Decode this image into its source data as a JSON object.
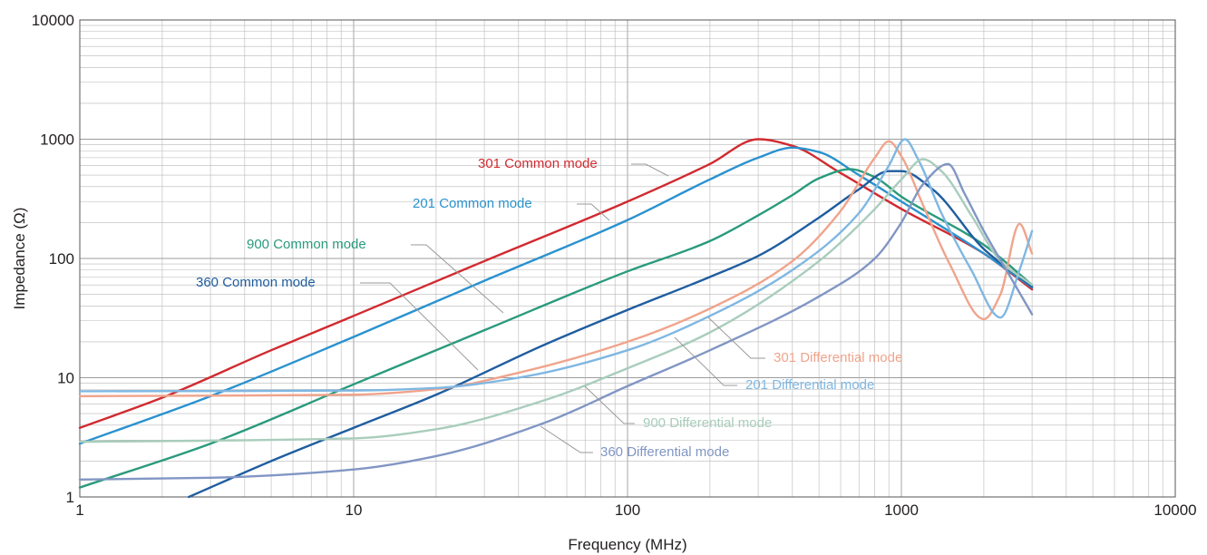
{
  "chart_data": {
    "type": "line",
    "title": "",
    "xlabel": "Frequency (MHz)",
    "ylabel": "Impedance (Ω)",
    "xscale": "log",
    "yscale": "log",
    "xlim": [
      1,
      10000
    ],
    "ylim": [
      1,
      10000
    ],
    "grid": true,
    "legend": "inline labels with leader lines",
    "x_ticks": [
      "1",
      "10",
      "100",
      "1000",
      "10000"
    ],
    "y_ticks": [
      "1",
      "10",
      "100",
      "1000",
      "10000"
    ],
    "series": [
      {
        "name": "301 Common mode",
        "color": "#d12a2f",
        "points": [
          [
            1,
            3.8
          ],
          [
            2,
            6.8
          ],
          [
            5,
            17
          ],
          [
            10,
            33
          ],
          [
            30,
            95
          ],
          [
            100,
            300
          ],
          [
            200,
            620
          ],
          [
            300,
            1000
          ],
          [
            400,
            880
          ],
          [
            600,
            520
          ],
          [
            1000,
            260
          ],
          [
            2000,
            110
          ],
          [
            3000,
            55
          ]
        ]
      },
      {
        "name": "201 Common mode",
        "color": "#2a92cf",
        "points": [
          [
            1,
            2.8
          ],
          [
            3,
            7
          ],
          [
            10,
            22
          ],
          [
            30,
            65
          ],
          [
            100,
            210
          ],
          [
            200,
            460
          ],
          [
            300,
            700
          ],
          [
            400,
            850
          ],
          [
            500,
            780
          ],
          [
            700,
            500
          ],
          [
            1000,
            300
          ],
          [
            2000,
            110
          ],
          [
            3000,
            57
          ]
        ]
      },
      {
        "name": "900 Common mode",
        "color": "#2a9a7c",
        "points": [
          [
            1,
            1.2
          ],
          [
            3,
            2.8
          ],
          [
            10,
            8.8
          ],
          [
            30,
            25
          ],
          [
            100,
            78
          ],
          [
            200,
            140
          ],
          [
            300,
            230
          ],
          [
            400,
            340
          ],
          [
            500,
            470
          ],
          [
            650,
            560
          ],
          [
            800,
            480
          ],
          [
            1000,
            330
          ],
          [
            2000,
            130
          ],
          [
            3000,
            60
          ]
        ]
      },
      {
        "name": "360 Common mode",
        "color": "#1f5d9f",
        "points": [
          [
            2.5,
            1
          ],
          [
            5,
            2
          ],
          [
            10,
            3.8
          ],
          [
            20,
            7.2
          ],
          [
            50,
            19
          ],
          [
            100,
            37
          ],
          [
            200,
            70
          ],
          [
            300,
            105
          ],
          [
            500,
            220
          ],
          [
            700,
            380
          ],
          [
            900,
            540
          ],
          [
            1000,
            540
          ],
          [
            1300,
            380
          ],
          [
            2000,
            120
          ],
          [
            3000,
            58
          ]
        ]
      },
      {
        "name": "301 Differential mode",
        "color": "#f0a48c",
        "points": [
          [
            1,
            7
          ],
          [
            10,
            7.2
          ],
          [
            20,
            8
          ],
          [
            40,
            11
          ],
          [
            100,
            20
          ],
          [
            200,
            38
          ],
          [
            400,
            95
          ],
          [
            600,
            250
          ],
          [
            800,
            700
          ],
          [
            900,
            960
          ],
          [
            1000,
            720
          ],
          [
            1200,
            280
          ],
          [
            1500,
            90
          ],
          [
            2000,
            31
          ],
          [
            2300,
            50
          ],
          [
            2700,
            195
          ],
          [
            3000,
            110
          ]
        ]
      },
      {
        "name": "201 Differential mode",
        "color": "#7fb7e2",
        "points": [
          [
            1,
            7.7
          ],
          [
            10,
            7.8
          ],
          [
            20,
            8.2
          ],
          [
            40,
            10
          ],
          [
            100,
            17
          ],
          [
            200,
            33
          ],
          [
            400,
            80
          ],
          [
            700,
            240
          ],
          [
            900,
            600
          ],
          [
            1030,
            1000
          ],
          [
            1150,
            680
          ],
          [
            1400,
            240
          ],
          [
            1800,
            80
          ],
          [
            2300,
            32
          ],
          [
            2700,
            80
          ],
          [
            3000,
            170
          ]
        ]
      },
      {
        "name": "900 Differential mode",
        "color": "#a9cdbc",
        "points": [
          [
            1,
            2.9
          ],
          [
            10,
            3.1
          ],
          [
            20,
            3.7
          ],
          [
            50,
            6.5
          ],
          [
            100,
            12
          ],
          [
            200,
            24
          ],
          [
            500,
            95
          ],
          [
            800,
            260
          ],
          [
            1000,
            460
          ],
          [
            1200,
            680
          ],
          [
            1400,
            540
          ],
          [
            1800,
            230
          ],
          [
            2300,
            95
          ],
          [
            3000,
            60
          ]
        ]
      },
      {
        "name": "360 Differential mode",
        "color": "#8196c4",
        "points": [
          [
            1,
            1.4
          ],
          [
            3,
            1.45
          ],
          [
            10,
            1.7
          ],
          [
            20,
            2.2
          ],
          [
            50,
            4.2
          ],
          [
            100,
            8.5
          ],
          [
            200,
            17
          ],
          [
            500,
            48
          ],
          [
            800,
            100
          ],
          [
            1000,
            200
          ],
          [
            1200,
            420
          ],
          [
            1480,
            620
          ],
          [
            1700,
            350
          ],
          [
            2000,
            170
          ],
          [
            2500,
            70
          ],
          [
            3000,
            34
          ]
        ]
      }
    ]
  }
}
